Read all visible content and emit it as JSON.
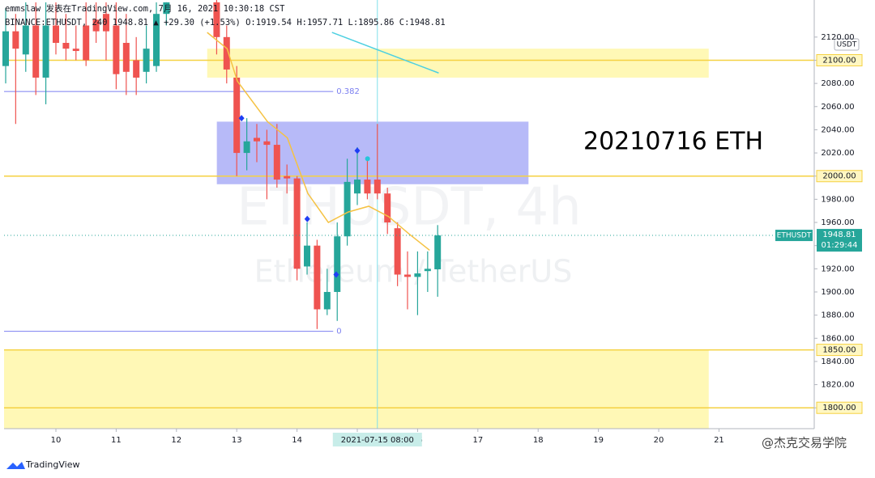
{
  "header": {
    "author_line": "emmslaw 发表在TradingView.com, 7月 16, 2021 10:30:18 CST",
    "symbol_line": "BINANCE:ETHUSDT, 240 1948.81 ▲ +29.30 (+1.53%) O:1919.54 H:1957.71 L:1895.86 C:1948.81"
  },
  "chart_data": {
    "type": "candlestick",
    "annotation": "20210716 ETH",
    "watermark": "ETHUSDT, 4h",
    "watermark_sub": "Ethereum / TetherUS",
    "axis_unit": "USDT",
    "x": [
      9.167,
      9.333,
      9.5,
      9.667,
      9.833,
      10,
      10.167,
      10.333,
      10.5,
      10.667,
      10.833,
      11,
      11.167,
      11.333,
      11.5,
      11.667,
      11.833,
      12.667,
      12.833,
      13,
      13.167,
      13.333,
      13.5,
      13.667,
      13.833,
      14,
      14.167,
      14.333,
      14.5,
      14.667,
      14.833,
      15,
      15.167,
      15.333,
      15.5,
      15.667,
      15.833,
      16,
      16.167,
      16.333
    ],
    "open": [
      2095,
      2125,
      2105,
      2130,
      2085,
      2130,
      2115,
      2110,
      2130,
      2135,
      2140,
      2130,
      2115,
      2100,
      2090,
      2095,
      2140,
      2150,
      2120,
      2085,
      2020,
      2033,
      2030,
      2027,
      2000,
      1998,
      1922,
      1940,
      1885,
      1900,
      1948,
      1985,
      1997,
      1997,
      1985,
      1955,
      1915,
      1913,
      1918,
      1919.54
    ],
    "high": [
      2145,
      2140,
      2150,
      2150,
      2150,
      2150,
      2140,
      2130,
      2150,
      2150,
      2150,
      2150,
      2140,
      2120,
      2130,
      2150,
      2150,
      2152,
      2130,
      2095,
      2050,
      2045,
      2040,
      2045,
      2010,
      2000,
      1960,
      1945,
      1920,
      1960,
      2015,
      2025,
      2015,
      2045,
      1990,
      1960,
      1935,
      1935,
      1935,
      1957.71
    ],
    "low": [
      2080,
      2045,
      2090,
      2070,
      2062,
      2105,
      2100,
      2100,
      2095,
      2115,
      2100,
      2075,
      2070,
      2070,
      2080,
      2090,
      2130,
      2105,
      2080,
      2000,
      2005,
      2012,
      1980,
      1990,
      1985,
      1910,
      1915,
      1868,
      1880,
      1875,
      1940,
      1975,
      1980,
      1980,
      1950,
      1905,
      1885,
      1880,
      1900,
      1895.86
    ],
    "close": [
      2125,
      2110,
      2130,
      2085,
      2130,
      2115,
      2110,
      2108,
      2100,
      2125,
      2125,
      2088,
      2090,
      2085,
      2110,
      2140,
      2150,
      2120,
      2092,
      2020,
      2030,
      2030,
      2027,
      1997,
      1998,
      1920,
      1940,
      1885,
      1900,
      1948,
      1995,
      1997,
      1985,
      1985,
      1960,
      1915,
      1913,
      1916,
      1920,
      1948.81
    ],
    "up_color": "#26a69a",
    "down_color": "#ef5350",
    "xlim": [
      9.14,
      22.58
    ],
    "xticks": [
      10,
      11,
      12,
      13,
      14,
      15,
      16,
      17,
      18,
      19,
      20,
      21
    ],
    "ylim": [
      1782,
      2152
    ],
    "yticks": [
      {
        "value": 1800,
        "label": "1800.00"
      },
      {
        "value": 1820,
        "label": "1820.00"
      },
      {
        "value": 1840,
        "label": "1840.00"
      },
      {
        "value": 1860,
        "label": "1860.00"
      },
      {
        "value": 1880,
        "label": "1880.00"
      },
      {
        "value": 1900,
        "label": "1900.00"
      },
      {
        "value": 1920,
        "label": "1920.00"
      },
      {
        "value": 1940,
        "label": "1940.00"
      },
      {
        "value": 1960,
        "label": "1960.00"
      },
      {
        "value": 1980,
        "label": "1980.00"
      },
      {
        "value": 2000,
        "label": "2000.00"
      },
      {
        "value": 2020,
        "label": "2020.00"
      },
      {
        "value": 2040,
        "label": "2040.00"
      },
      {
        "value": 2060,
        "label": "2060.00"
      },
      {
        "value": 2080,
        "label": "2080.00"
      },
      {
        "value": 2100,
        "label": "2100.00"
      },
      {
        "value": 2120,
        "label": "2120.00"
      }
    ],
    "levels": [
      {
        "value": 2100,
        "label": "2100.00"
      },
      {
        "value": 2000,
        "label": "2000.00"
      },
      {
        "value": 1850,
        "label": "1850.00"
      },
      {
        "value": 1800,
        "label": "1800.00"
      }
    ],
    "level_color": "#f5d142",
    "zones": [
      {
        "x": [
          12.51,
          20.83
        ],
        "y": [
          2085,
          2110
        ],
        "color": "#fff59d"
      },
      {
        "x": [
          9.14,
          20.83
        ],
        "y": [
          1782,
          1850
        ],
        "color": "#fff59d"
      },
      {
        "x": [
          12.67,
          17.84
        ],
        "y": [
          1993,
          2047
        ],
        "color": "#9fa3f5"
      }
    ],
    "fib": {
      "x": [
        9.14,
        14.6
      ],
      "color": "#7b7ff0",
      "levels": [
        {
          "value": 2073,
          "label": "0.382"
        },
        {
          "value": 1866,
          "label": "0"
        }
      ]
    },
    "series": [
      {
        "color": "#f5c242",
        "x": [
          12.51,
          12.84,
          13.01,
          13.51,
          13.84,
          14.18,
          14.52,
          14.85,
          15.19,
          15.52,
          15.86,
          16.2
        ],
        "values": [
          2124,
          2110,
          2082,
          2047,
          2033,
          1985,
          1960,
          1969,
          1974,
          1965,
          1950,
          1936
        ]
      },
      {
        "color": "#4dd0e1",
        "x": [
          14.58,
          16.35
        ],
        "values": [
          2124,
          2089
        ]
      }
    ],
    "markers": {
      "color": "#1e3ef5",
      "x": [
        13.08,
        14.17,
        14.65,
        15.0
      ],
      "values": [
        2050,
        1963,
        1915,
        2022
      ]
    },
    "dot": {
      "color": "#26c6da",
      "x": 15.17,
      "value": 2015
    },
    "crosshair": {
      "x": 15.333,
      "label": "2021-07-15 08:00"
    },
    "last": {
      "label": "ETHUSDT",
      "value": 1948.81,
      "countdown": "01:29:44"
    }
  },
  "footer": {
    "brand": "TradingView",
    "credit": "@杰克交易学院"
  }
}
